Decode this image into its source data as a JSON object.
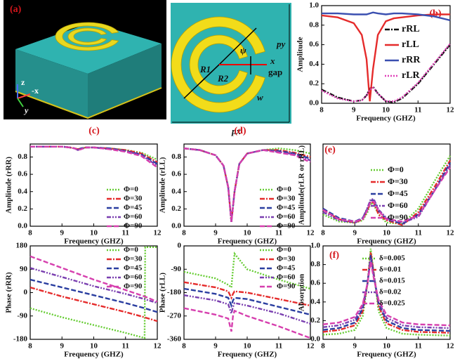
{
  "illustrations": {
    "unit_cell_3d": {
      "label": "(a)",
      "axes": [
        "z",
        "-x",
        "y"
      ]
    },
    "schematic": {
      "labels": [
        "R1",
        "R2",
        "ψ",
        "py",
        "x",
        "gap",
        "w",
        "px"
      ]
    }
  },
  "chart_data": [
    {
      "type": "line",
      "panel_label": "(b)",
      "xlabel": "Frequency (GHZ)",
      "ylabel": "Amplitude",
      "x": [
        8,
        8.5,
        9,
        9.25,
        9.4,
        9.5,
        9.6,
        9.75,
        10,
        10.25,
        10.5,
        11,
        11.5,
        12
      ],
      "xlim": [
        8,
        12
      ],
      "xticks": [
        8,
        9,
        10,
        11,
        12
      ],
      "ylim": [
        0,
        1.0
      ],
      "yticks": [
        {
          "value": 0,
          "label": "0.0"
        },
        0.2,
        0.4,
        0.6,
        0.8,
        {
          "value": 1,
          "label": "1.0"
        }
      ],
      "series": [
        {
          "name": "rRL",
          "color": "#111111",
          "style": "dashdot",
          "values": [
            0.14,
            0.06,
            0.02,
            0.03,
            0.08,
            0.15,
            0.17,
            0.1,
            0.02,
            0.01,
            0.05,
            0.2,
            0.4,
            0.6
          ]
        },
        {
          "name": "rLL",
          "color": "#e52b2b",
          "style": "solid",
          "values": [
            0.9,
            0.88,
            0.82,
            0.7,
            0.45,
            0.02,
            0.35,
            0.7,
            0.84,
            0.87,
            0.88,
            0.9,
            0.91,
            0.91
          ]
        },
        {
          "name": "rRR",
          "color": "#3a4fb0",
          "style": "solid",
          "values": [
            0.92,
            0.92,
            0.91,
            0.91,
            0.91,
            0.92,
            0.93,
            0.92,
            0.91,
            0.92,
            0.92,
            0.91,
            0.89,
            0.85
          ]
        },
        {
          "name": "rLR",
          "color": "#e040b8",
          "style": "dotted",
          "values": [
            0.13,
            0.05,
            0.02,
            0.03,
            0.08,
            0.14,
            0.16,
            0.1,
            0.02,
            0.02,
            0.06,
            0.21,
            0.41,
            0.61
          ]
        }
      ]
    },
    {
      "type": "line",
      "panel_label": "(c)",
      "xlabel": "Frequency (GHZ)",
      "ylabel": "Amplitude (rRR)",
      "x": [
        8,
        8.5,
        9,
        9.25,
        9.4,
        9.5,
        9.6,
        9.75,
        10,
        10.5,
        11,
        11.5,
        12
      ],
      "xlim": [
        8,
        12
      ],
      "xticks": [
        8,
        9,
        10,
        11,
        12
      ],
      "ylim": [
        0,
        0.95
      ],
      "yticks": [
        {
          "value": 0,
          "label": "0.0"
        },
        0.2,
        0.4,
        0.6,
        0.8
      ],
      "series": [
        {
          "name": "Φ=0",
          "color": "#66cc33",
          "style": "dotted",
          "values": [
            0.92,
            0.92,
            0.92,
            0.91,
            0.9,
            0.89,
            0.9,
            0.91,
            0.91,
            0.9,
            0.88,
            0.85,
            0.77
          ]
        },
        {
          "name": "Φ=30",
          "color": "#e52b2b",
          "style": "dashdot",
          "values": [
            0.92,
            0.92,
            0.92,
            0.91,
            0.9,
            0.89,
            0.9,
            0.91,
            0.91,
            0.9,
            0.88,
            0.84,
            0.74
          ]
        },
        {
          "name": "Φ=45",
          "color": "#2a3ea0",
          "style": "dashed",
          "values": [
            0.92,
            0.92,
            0.92,
            0.91,
            0.9,
            0.88,
            0.9,
            0.91,
            0.91,
            0.9,
            0.87,
            0.83,
            0.72
          ]
        },
        {
          "name": "Φ=60",
          "color": "#7a3fb0",
          "style": "dashdotdot",
          "values": [
            0.92,
            0.92,
            0.92,
            0.91,
            0.9,
            0.88,
            0.89,
            0.91,
            0.91,
            0.89,
            0.87,
            0.82,
            0.7
          ]
        },
        {
          "name": "Φ=90",
          "color": "#d63fae",
          "style": "dashed",
          "values": [
            0.92,
            0.92,
            0.92,
            0.91,
            0.9,
            0.88,
            0.89,
            0.91,
            0.91,
            0.89,
            0.86,
            0.81,
            0.68
          ]
        }
      ]
    },
    {
      "type": "line",
      "panel_label": "(d)",
      "xlabel": "Frequency (GHZ)",
      "ylabel": "Amplitude (rLL)",
      "x": [
        8,
        8.5,
        9,
        9.25,
        9.4,
        9.5,
        9.6,
        9.75,
        10,
        10.5,
        11,
        11.5,
        12
      ],
      "xlim": [
        8,
        12
      ],
      "xticks": [
        8,
        9,
        10,
        11,
        12
      ],
      "ylim": [
        0,
        0.95
      ],
      "yticks": [
        {
          "value": 0,
          "label": "0.0"
        },
        0.2,
        0.4,
        0.6,
        0.8
      ],
      "series": [
        {
          "name": "Φ=0",
          "color": "#66cc33",
          "style": "dotted",
          "values": [
            0.9,
            0.88,
            0.82,
            0.7,
            0.45,
            0.05,
            0.4,
            0.72,
            0.84,
            0.88,
            0.9,
            0.88,
            0.84
          ]
        },
        {
          "name": "Φ=30",
          "color": "#e52b2b",
          "style": "dashdot",
          "values": [
            0.9,
            0.88,
            0.82,
            0.7,
            0.45,
            0.05,
            0.4,
            0.72,
            0.84,
            0.88,
            0.88,
            0.85,
            0.8
          ]
        },
        {
          "name": "Φ=45",
          "color": "#2a3ea0",
          "style": "dashed",
          "values": [
            0.9,
            0.88,
            0.82,
            0.7,
            0.45,
            0.05,
            0.4,
            0.72,
            0.84,
            0.88,
            0.87,
            0.84,
            0.78
          ]
        },
        {
          "name": "Φ=60",
          "color": "#7a3fb0",
          "style": "dashdotdot",
          "values": [
            0.9,
            0.88,
            0.82,
            0.7,
            0.45,
            0.05,
            0.4,
            0.72,
            0.84,
            0.88,
            0.86,
            0.83,
            0.76
          ]
        },
        {
          "name": "Φ=90",
          "color": "#d63fae",
          "style": "dashed",
          "values": [
            0.9,
            0.88,
            0.82,
            0.7,
            0.45,
            0.05,
            0.4,
            0.72,
            0.84,
            0.88,
            0.85,
            0.82,
            0.74
          ]
        }
      ]
    },
    {
      "type": "line",
      "panel_label": "(e)",
      "xlabel": "Frequency (GHZ)",
      "ylabel": "Amplitude(rLR or rRL)",
      "x": [
        8,
        8.5,
        9,
        9.25,
        9.4,
        9.5,
        9.6,
        9.75,
        10,
        10.5,
        11,
        11.5,
        12
      ],
      "xlim": [
        8,
        12
      ],
      "xticks": [
        8,
        9,
        10,
        11,
        12
      ],
      "ylim": [
        0,
        0.7
      ],
      "series": [
        {
          "name": "Φ=0",
          "color": "#66cc33",
          "style": "dotted",
          "values": [
            0.1,
            0.04,
            0.03,
            0.05,
            0.12,
            0.2,
            0.18,
            0.1,
            0.03,
            0.02,
            0.15,
            0.38,
            0.6
          ]
        },
        {
          "name": "Φ=30",
          "color": "#e52b2b",
          "style": "dashdot",
          "values": [
            0.14,
            0.06,
            0.03,
            0.06,
            0.14,
            0.21,
            0.2,
            0.1,
            0.05,
            0.01,
            0.12,
            0.33,
            0.56
          ]
        },
        {
          "name": "Φ=45",
          "color": "#2a3ea0",
          "style": "dashed",
          "values": [
            0.15,
            0.07,
            0.04,
            0.07,
            0.15,
            0.22,
            0.22,
            0.13,
            0.06,
            0.02,
            0.1,
            0.3,
            0.54
          ]
        },
        {
          "name": "Φ=60",
          "color": "#7a3fb0",
          "style": "dashdotdot",
          "values": [
            0.12,
            0.05,
            0.03,
            0.07,
            0.16,
            0.23,
            0.23,
            0.14,
            0.07,
            0.03,
            0.08,
            0.3,
            0.52
          ]
        },
        {
          "name": "Φ=90",
          "color": "#d63fae",
          "style": "dashed",
          "values": [
            0.14,
            0.06,
            0.04,
            0.06,
            0.14,
            0.21,
            0.21,
            0.13,
            0.06,
            0.04,
            0.09,
            0.3,
            0.5
          ]
        }
      ]
    },
    {
      "type": "line",
      "xlabel": "Frequency (GHZ)",
      "ylabel": "Phase (rRR)",
      "x": [
        8,
        9,
        10,
        11,
        11.6,
        11.62,
        12
      ],
      "xlim": [
        8,
        12
      ],
      "xticks": [
        8,
        9,
        10,
        11,
        12
      ],
      "ylim": [
        -180,
        180
      ],
      "yticks": [
        -180,
        -90,
        0,
        90,
        180
      ],
      "series": [
        {
          "name": "Φ=0",
          "color": "#66cc33",
          "style": "dotted",
          "values": [
            -60,
            -95,
            -125,
            -155,
            -175,
            175,
            175
          ]
        },
        {
          "name": "Φ=30",
          "color": "#e52b2b",
          "style": "dashdot",
          "values": [
            20,
            -15,
            -45,
            -75,
            -95,
            -96,
            -110
          ]
        },
        {
          "name": "Φ=45",
          "color": "#2a3ea0",
          "style": "dashed",
          "values": [
            50,
            20,
            -10,
            -40,
            -60,
            -61,
            -75
          ]
        },
        {
          "name": "Φ=60",
          "color": "#7a3fb0",
          "style": "dashdotdot",
          "values": [
            95,
            60,
            25,
            -5,
            -25,
            -26,
            -40
          ]
        },
        {
          "name": "Φ=90",
          "color": "#d63fae",
          "style": "dashed",
          "values": [
            140,
            95,
            50,
            10,
            -15,
            -16,
            -35
          ]
        }
      ]
    },
    {
      "type": "line",
      "xlabel": "Frequency (GHZ)",
      "ylabel": "Phase (rLL)",
      "x": [
        8,
        9,
        9.4,
        9.5,
        9.55,
        9.6,
        10,
        11,
        12
      ],
      "xlim": [
        8,
        12
      ],
      "xticks": [
        8,
        9,
        10,
        11,
        12
      ],
      "ylim": [
        -360,
        0
      ],
      "yticks": [
        -360,
        -270,
        -180,
        -90,
        0
      ],
      "series": [
        {
          "name": "Φ=0",
          "color": "#66cc33",
          "style": "dotted",
          "values": [
            -100,
            -125,
            -150,
            -160,
            -90,
            -30,
            -90,
            -130,
            -165
          ]
        },
        {
          "name": "Φ=30",
          "color": "#e52b2b",
          "style": "dashdot",
          "values": [
            -140,
            -160,
            -175,
            -200,
            -185,
            -175,
            -180,
            -205,
            -230
          ]
        },
        {
          "name": "Φ=45",
          "color": "#2a3ea0",
          "style": "dashed",
          "values": [
            -165,
            -185,
            -200,
            -230,
            -210,
            -200,
            -205,
            -235,
            -265
          ]
        },
        {
          "name": "Φ=60",
          "color": "#7a3fb0",
          "style": "dashdotdot",
          "values": [
            -190,
            -210,
            -225,
            -260,
            -235,
            -220,
            -230,
            -260,
            -300
          ]
        },
        {
          "name": "Φ=90",
          "color": "#d63fae",
          "style": "dashed",
          "values": [
            -240,
            -265,
            -280,
            -330,
            -270,
            -250,
            -270,
            -310,
            -355
          ]
        }
      ]
    },
    {
      "type": "line",
      "panel_label": "(f)",
      "xlabel": "Frequency (GHZ)",
      "ylabel": "Absorption",
      "x": [
        8,
        8.5,
        9,
        9.25,
        9.4,
        9.5,
        9.6,
        9.75,
        10,
        10.5,
        11,
        12
      ],
      "xlim": [
        8,
        12
      ],
      "xticks": [
        8,
        9,
        10,
        11,
        12
      ],
      "ylim": [
        0,
        1.0
      ],
      "yticks": [
        {
          "value": 0,
          "label": "0.0"
        },
        0.2,
        0.4,
        0.6,
        0.8,
        {
          "value": 1,
          "label": "1.0"
        }
      ],
      "series": [
        {
          "name": "δ=0.005",
          "color": "#66cc33",
          "style": "dotted",
          "values": [
            0.05,
            0.06,
            0.1,
            0.25,
            0.6,
            0.97,
            0.7,
            0.3,
            0.12,
            0.06,
            0.05,
            0.04
          ]
        },
        {
          "name": "δ=0.01",
          "color": "#e52b2b",
          "style": "dashdot",
          "values": [
            0.08,
            0.1,
            0.15,
            0.3,
            0.6,
            0.93,
            0.7,
            0.35,
            0.17,
            0.1,
            0.08,
            0.07
          ]
        },
        {
          "name": "δ=0.015",
          "color": "#2a3ea0",
          "style": "dashed",
          "values": [
            0.1,
            0.12,
            0.18,
            0.33,
            0.6,
            0.9,
            0.68,
            0.38,
            0.2,
            0.12,
            0.1,
            0.09
          ]
        },
        {
          "name": "δ=0.02",
          "color": "#7a3fb0",
          "style": "dashdotdot",
          "values": [
            0.13,
            0.15,
            0.21,
            0.36,
            0.6,
            0.87,
            0.67,
            0.4,
            0.23,
            0.15,
            0.13,
            0.12
          ]
        },
        {
          "name": "δ=0.025",
          "color": "#d63fae",
          "style": "dashed",
          "values": [
            0.16,
            0.18,
            0.24,
            0.38,
            0.6,
            0.83,
            0.65,
            0.42,
            0.26,
            0.18,
            0.16,
            0.15
          ]
        }
      ]
    }
  ]
}
